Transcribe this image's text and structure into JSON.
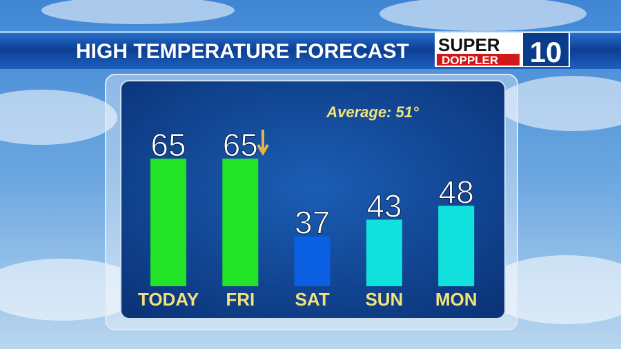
{
  "chart_data": {
    "type": "bar",
    "title": "HIGH TEMPERATURE FORECAST",
    "annotation": "Average: 51°",
    "categories": [
      "TODAY",
      "FRI",
      "SAT",
      "SUN",
      "MON"
    ],
    "values": [
      65,
      65,
      37,
      43,
      48
    ],
    "colors": [
      "#22e326",
      "#22e326",
      "#0b5fe3",
      "#12e0dc",
      "#12e0dc"
    ],
    "ylim": [
      19,
      65
    ]
  },
  "logo": {
    "top": "SUPER",
    "bottom": "DOPPLER",
    "number": "10"
  }
}
